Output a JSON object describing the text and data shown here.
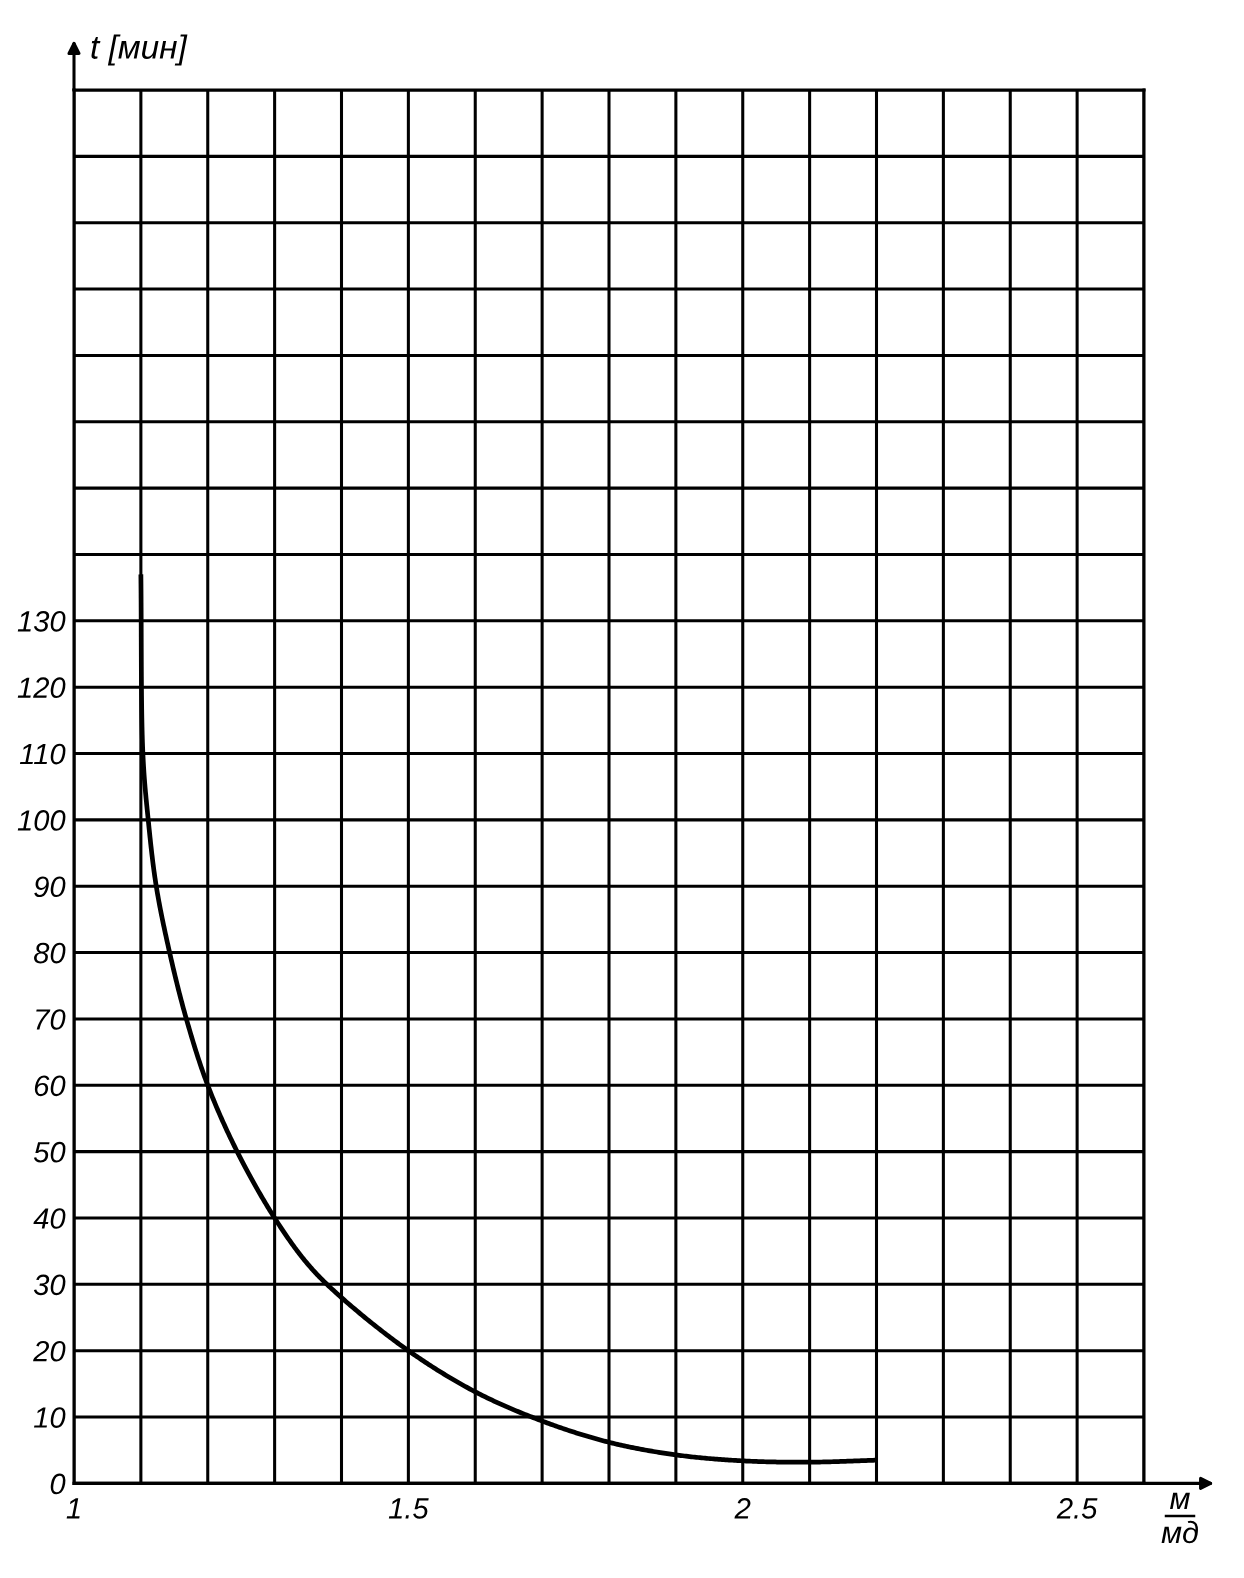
{
  "chart_data": {
    "type": "line",
    "xlabel": "м\nмд",
    "ylabel": "t [мин]",
    "x": [
      1.1,
      1.103,
      1.111,
      1.123,
      1.143,
      1.168,
      1.2,
      1.244,
      1.3,
      1.35,
      1.4,
      1.5,
      1.6,
      1.7,
      1.8,
      1.9,
      2.0,
      2.1,
      2.2
    ],
    "series": [
      {
        "color": "#000000",
        "values": [
          137,
          110,
          100,
          90,
          80,
          70,
          60,
          50,
          40,
          33,
          28,
          20,
          13.8,
          9.4,
          6.2,
          4.3,
          3.4,
          3.2,
          3.5
        ]
      }
    ],
    "xlim": [
      1,
      2.6
    ],
    "ylim": [
      0,
      210
    ],
    "xticks": [
      1,
      {
        "value": 1.1,
        "label": null
      },
      {
        "value": 1.2,
        "label": null
      },
      {
        "value": 1.3,
        "label": null
      },
      {
        "value": 1.4,
        "label": null
      },
      1.5,
      {
        "value": 1.6,
        "label": null
      },
      {
        "value": 1.7,
        "label": null
      },
      {
        "value": 1.8,
        "label": null
      },
      {
        "value": 1.9,
        "label": null
      },
      2,
      {
        "value": 2.1,
        "label": null
      },
      {
        "value": 2.2,
        "label": null
      },
      {
        "value": 2.3,
        "label": null
      },
      {
        "value": 2.4,
        "label": null
      },
      2.5,
      {
        "value": 2.6,
        "label": null
      }
    ],
    "yticks": [
      0,
      10,
      20,
      30,
      40,
      50,
      60,
      70,
      80,
      90,
      100,
      110,
      120,
      130,
      {
        "value": 140,
        "label": null
      },
      {
        "value": 150,
        "label": null
      },
      {
        "value": 160,
        "label": null
      },
      {
        "value": 170,
        "label": null
      },
      {
        "value": 180,
        "label": null
      },
      {
        "value": 190,
        "label": null
      },
      {
        "value": 200,
        "label": null
      },
      {
        "value": 210,
        "label": null
      }
    ],
    "grid": true,
    "marker": "none",
    "line_style": "solid"
  }
}
